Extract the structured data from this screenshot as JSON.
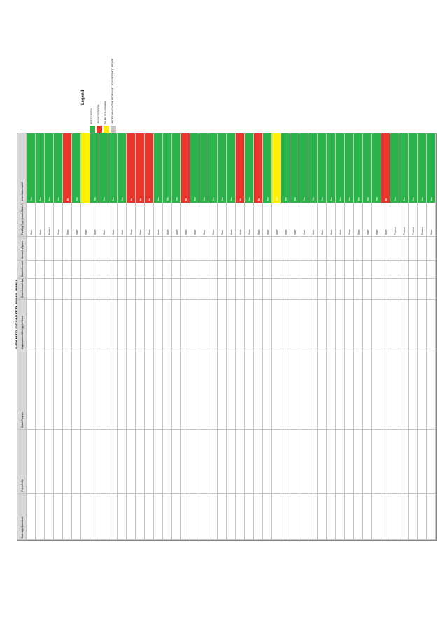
{
  "title": "GRANTS REGISTER (2018-2019)",
  "legend": {
    "title": "Legend",
    "items": [
      {
        "label": "SUCCESSFUL",
        "color": "#2cb34a"
      },
      {
        "label": "UNSUCCESSFUL",
        "color": "#e8362b"
      },
      {
        "label": "TO BE CONFIRMED",
        "color": "#ffef00"
      },
      {
        "label": "UNDER WHICH THE FEBRUARY 2018 REPORT UPDATE",
        "color": "#c8c8c8"
      }
    ]
  },
  "columns": [
    "Date App Submitted",
    "Project Title",
    "Grant Program",
    "Organisation Offering the Grant",
    "Grant Amount Applied For",
    "Council's contribution",
    "Amount of grant",
    "Funding Type (Local, State, Federal)",
    "Grant Successful?"
  ],
  "rows": [
    {
      "date": "",
      "project": "",
      "program": "",
      "org": "",
      "applied": "",
      "council": "",
      "amount": "",
      "type": "State",
      "result": "Yes",
      "status": "green"
    },
    {
      "date": "",
      "project": "",
      "program": "",
      "org": "",
      "applied": "",
      "council": "",
      "amount": "",
      "type": "State",
      "result": "Yes",
      "status": "green"
    },
    {
      "date": "",
      "project": "",
      "program": "",
      "org": "",
      "applied": "",
      "council": "",
      "amount": "",
      "type": "Federal",
      "result": "Yes",
      "status": "green"
    },
    {
      "date": "",
      "project": "",
      "program": "",
      "org": "",
      "applied": "",
      "council": "",
      "amount": "",
      "type": "State",
      "result": "Yes",
      "status": "green"
    },
    {
      "date": "",
      "project": "",
      "program": "",
      "org": "",
      "applied": "",
      "council": "",
      "amount": "",
      "type": "State",
      "result": "No",
      "status": "red"
    },
    {
      "date": "",
      "project": "",
      "program": "",
      "org": "",
      "applied": "",
      "council": "",
      "amount": "",
      "type": "State",
      "result": "Yes",
      "status": "green"
    },
    {
      "date": "",
      "project": "",
      "program": "",
      "org": "",
      "applied": "",
      "council": "",
      "amount": "",
      "type": "State",
      "result": "",
      "status": "yellow"
    },
    {
      "date": "",
      "project": "",
      "program": "",
      "org": "",
      "applied": "",
      "council": "",
      "amount": "",
      "type": "State",
      "result": "Yes",
      "status": "green"
    },
    {
      "date": "",
      "project": "",
      "program": "",
      "org": "",
      "applied": "",
      "council": "",
      "amount": "",
      "type": "State",
      "result": "Yes",
      "status": "green"
    },
    {
      "date": "",
      "project": "",
      "program": "",
      "org": "",
      "applied": "",
      "council": "",
      "amount": "",
      "type": "State",
      "result": "Yes",
      "status": "green"
    },
    {
      "date": "",
      "project": "",
      "program": "",
      "org": "",
      "applied": "",
      "council": "",
      "amount": "",
      "type": "State",
      "result": "Yes",
      "status": "green"
    },
    {
      "date": "",
      "project": "",
      "program": "",
      "org": "",
      "applied": "",
      "council": "",
      "amount": "",
      "type": "State",
      "result": "No",
      "status": "red"
    },
    {
      "date": "",
      "project": "",
      "program": "",
      "org": "",
      "applied": "",
      "council": "",
      "amount": "",
      "type": "State",
      "result": "No",
      "status": "red"
    },
    {
      "date": "",
      "project": "",
      "program": "",
      "org": "",
      "applied": "",
      "council": "",
      "amount": "",
      "type": "State",
      "result": "No",
      "status": "red"
    },
    {
      "date": "",
      "project": "",
      "program": "",
      "org": "",
      "applied": "",
      "council": "",
      "amount": "",
      "type": "State",
      "result": "Yes",
      "status": "green"
    },
    {
      "date": "",
      "project": "",
      "program": "",
      "org": "",
      "applied": "",
      "council": "",
      "amount": "",
      "type": "State",
      "result": "Yes",
      "status": "green"
    },
    {
      "date": "",
      "project": "",
      "program": "",
      "org": "",
      "applied": "",
      "council": "",
      "amount": "",
      "type": "State",
      "result": "Yes",
      "status": "green"
    },
    {
      "date": "",
      "project": "",
      "program": "",
      "org": "",
      "applied": "",
      "council": "",
      "amount": "",
      "type": "State",
      "result": "No",
      "status": "red"
    },
    {
      "date": "",
      "project": "",
      "program": "",
      "org": "",
      "applied": "",
      "council": "",
      "amount": "",
      "type": "State",
      "result": "Yes",
      "status": "green"
    },
    {
      "date": "",
      "project": "",
      "program": "",
      "org": "",
      "applied": "",
      "council": "",
      "amount": "",
      "type": "State",
      "result": "Yes",
      "status": "green"
    },
    {
      "date": "",
      "project": "",
      "program": "",
      "org": "",
      "applied": "",
      "council": "",
      "amount": "",
      "type": "State",
      "result": "Yes",
      "status": "green"
    },
    {
      "date": "",
      "project": "",
      "program": "",
      "org": "",
      "applied": "",
      "council": "",
      "amount": "",
      "type": "State",
      "result": "Yes",
      "status": "green"
    },
    {
      "date": "",
      "project": "",
      "program": "",
      "org": "",
      "applied": "",
      "council": "",
      "amount": "",
      "type": "State",
      "result": "Yes",
      "status": "green"
    },
    {
      "date": "",
      "project": "",
      "program": "",
      "org": "",
      "applied": "",
      "council": "",
      "amount": "",
      "type": "State",
      "result": "No",
      "status": "red"
    },
    {
      "date": "",
      "project": "",
      "program": "",
      "org": "",
      "applied": "",
      "council": "",
      "amount": "",
      "type": "State",
      "result": "Yes",
      "status": "green"
    },
    {
      "date": "",
      "project": "",
      "program": "",
      "org": "",
      "applied": "",
      "council": "",
      "amount": "",
      "type": "State",
      "result": "No",
      "status": "red"
    },
    {
      "date": "",
      "project": "",
      "program": "",
      "org": "",
      "applied": "",
      "council": "",
      "amount": "",
      "type": "State",
      "result": "Yes",
      "status": "green"
    },
    {
      "date": "",
      "project": "",
      "program": "",
      "org": "",
      "applied": "",
      "council": "",
      "amount": "",
      "type": "State",
      "result": "TBA",
      "status": "yellow"
    },
    {
      "date": "",
      "project": "",
      "program": "",
      "org": "",
      "applied": "",
      "council": "",
      "amount": "",
      "type": "State",
      "result": "Yes",
      "status": "green"
    },
    {
      "date": "",
      "project": "",
      "program": "",
      "org": "",
      "applied": "",
      "council": "",
      "amount": "",
      "type": "State",
      "result": "Yes",
      "status": "green"
    },
    {
      "date": "",
      "project": "",
      "program": "",
      "org": "",
      "applied": "",
      "council": "",
      "amount": "",
      "type": "State",
      "result": "Yes",
      "status": "green"
    },
    {
      "date": "",
      "project": "",
      "program": "",
      "org": "",
      "applied": "",
      "council": "",
      "amount": "",
      "type": "State",
      "result": "Yes",
      "status": "green"
    },
    {
      "date": "",
      "project": "",
      "program": "",
      "org": "",
      "applied": "",
      "council": "",
      "amount": "",
      "type": "State",
      "result": "Yes",
      "status": "green"
    },
    {
      "date": "",
      "project": "",
      "program": "",
      "org": "",
      "applied": "",
      "council": "",
      "amount": "",
      "type": "State",
      "result": "Yes",
      "status": "green"
    },
    {
      "date": "",
      "project": "",
      "program": "",
      "org": "",
      "applied": "",
      "council": "",
      "amount": "",
      "type": "State",
      "result": "Yes",
      "status": "green"
    },
    {
      "date": "",
      "project": "",
      "program": "",
      "org": "",
      "applied": "",
      "council": "",
      "amount": "",
      "type": "State",
      "result": "Yes",
      "status": "green"
    },
    {
      "date": "",
      "project": "",
      "program": "",
      "org": "",
      "applied": "",
      "council": "",
      "amount": "",
      "type": "State",
      "result": "Yes",
      "status": "green"
    },
    {
      "date": "",
      "project": "",
      "program": "",
      "org": "",
      "applied": "",
      "council": "",
      "amount": "",
      "type": "State",
      "result": "Yes",
      "status": "green"
    },
    {
      "date": "",
      "project": "",
      "program": "",
      "org": "",
      "applied": "",
      "council": "",
      "amount": "",
      "type": "State",
      "result": "Yes",
      "status": "green"
    },
    {
      "date": "",
      "project": "",
      "program": "",
      "org": "",
      "applied": "",
      "council": "",
      "amount": "",
      "type": "State",
      "result": "No",
      "status": "red"
    },
    {
      "date": "",
      "project": "",
      "program": "",
      "org": "",
      "applied": "",
      "council": "",
      "amount": "",
      "type": "Federal",
      "result": "Yes",
      "status": "green"
    },
    {
      "date": "",
      "project": "",
      "program": "",
      "org": "",
      "applied": "",
      "council": "",
      "amount": "",
      "type": "Federal",
      "result": "Yes",
      "status": "green"
    },
    {
      "date": "",
      "project": "",
      "program": "",
      "org": "",
      "applied": "",
      "council": "",
      "amount": "",
      "type": "Federal",
      "result": "Yes",
      "status": "green"
    },
    {
      "date": "",
      "project": "",
      "program": "",
      "org": "",
      "applied": "",
      "council": "",
      "amount": "",
      "type": "Federal",
      "result": "Yes",
      "status": "green"
    },
    {
      "date": "",
      "project": "",
      "program": "",
      "org": "",
      "applied": "",
      "council": "",
      "amount": "",
      "type": "State",
      "result": "Yes",
      "status": "green"
    }
  ],
  "status_colors": {
    "green": "#2cb34a",
    "red": "#e8362b",
    "yellow": "#ffef00",
    "grey": "#c8c8c8"
  }
}
